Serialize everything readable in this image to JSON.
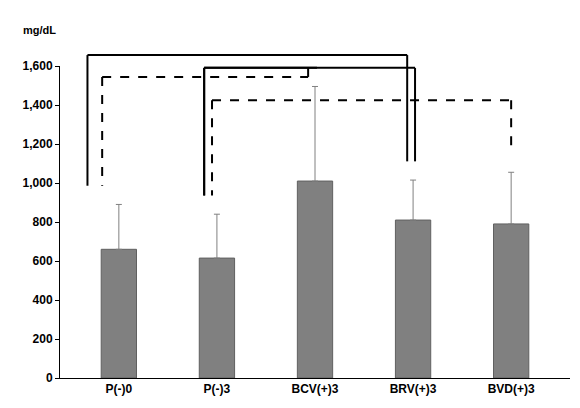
{
  "chart_data": {
    "type": "bar",
    "y_label": "mg/dL",
    "categories": [
      "P(-)0",
      "P(-)3",
      "BCV(+)3",
      "BRV(+)3",
      "BVD(+)3"
    ],
    "values": [
      660,
      615,
      1010,
      810,
      790
    ],
    "errors": [
      230,
      225,
      485,
      205,
      265
    ],
    "color": "#808080",
    "ylim": [
      0,
      1600
    ],
    "yticks": [
      0,
      200,
      400,
      600,
      800,
      {
        "value": 1000,
        "label": "1,000"
      },
      {
        "value": 1200,
        "label": "1,200"
      },
      {
        "value": 1400,
        "label": "1,400"
      },
      {
        "value": 1600,
        "label": "1,600"
      }
    ],
    "grid": false,
    "brackets": [
      {
        "from": "P(-)0",
        "to": "BRV(+)3",
        "line_style": "solid"
      },
      {
        "from": "P(-)3",
        "to": "BCV(+)3",
        "line_style": "solid"
      },
      {
        "from": "P(-)3",
        "to": "BRV(+)3",
        "line_style": "solid"
      },
      {
        "from": "P(-)0",
        "to": "BCV(+)3",
        "line_style": "dashed"
      },
      {
        "from": "P(-)3",
        "to": "BVD(+)3",
        "line_style": "dashed"
      }
    ]
  }
}
